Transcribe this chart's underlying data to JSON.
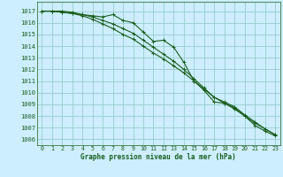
{
  "title": "Graphe pression niveau de la mer (hPa)",
  "background_color": "#cceeff",
  "grid_color": "#99cccc",
  "line_color": "#1a5c1a",
  "xlim": [
    -0.5,
    23.5
  ],
  "ylim": [
    1005.5,
    1017.8
  ],
  "xticks": [
    0,
    1,
    2,
    3,
    4,
    5,
    6,
    7,
    8,
    9,
    10,
    11,
    12,
    13,
    14,
    15,
    16,
    17,
    18,
    19,
    20,
    21,
    22,
    23
  ],
  "yticks": [
    1006,
    1007,
    1008,
    1009,
    1010,
    1011,
    1012,
    1013,
    1014,
    1015,
    1016,
    1017
  ],
  "series1": [
    1017.0,
    1017.0,
    1016.9,
    1016.8,
    1016.7,
    1016.6,
    1016.5,
    1016.7,
    1016.2,
    1016.0,
    1015.2,
    1014.4,
    1014.5,
    1013.9,
    1012.6,
    1011.0,
    1010.2,
    1009.2,
    1009.1,
    1008.6,
    1008.0,
    1007.2,
    1006.7,
    1006.3
  ],
  "series2": [
    1017.0,
    1017.0,
    1017.0,
    1016.9,
    1016.7,
    1016.5,
    1016.2,
    1015.9,
    1015.5,
    1015.1,
    1014.5,
    1013.9,
    1013.3,
    1012.7,
    1012.0,
    1011.2,
    1010.4,
    1009.6,
    1009.2,
    1008.8,
    1008.1,
    1007.5,
    1006.9,
    1006.4
  ],
  "series3": [
    1017.0,
    1017.0,
    1016.9,
    1016.8,
    1016.6,
    1016.3,
    1015.9,
    1015.5,
    1015.0,
    1014.6,
    1014.0,
    1013.4,
    1012.9,
    1012.3,
    1011.7,
    1011.0,
    1010.3,
    1009.6,
    1009.1,
    1008.7,
    1008.0,
    1007.4,
    1006.9,
    1006.4
  ],
  "ylabel_fontsize": 5.0,
  "xlabel_fontsize": 5.5,
  "tick_fontsize": 4.8
}
